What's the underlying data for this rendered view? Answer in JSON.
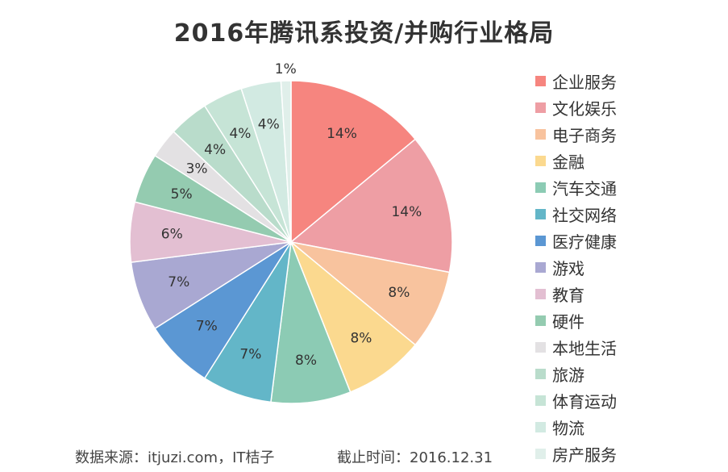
{
  "chart_data": {
    "type": "pie",
    "title": "2016年腾讯系投资/并购行业格局",
    "labels": [
      "企业服务",
      "文化娱乐",
      "电子商务",
      "金融",
      "汽车交通",
      "社交网络",
      "医疗健康",
      "游戏",
      "教育",
      "硬件",
      "本地生活",
      "旅游",
      "体育运动",
      "物流",
      "房产服务"
    ],
    "values": [
      14,
      14,
      8,
      8,
      8,
      7,
      7,
      7,
      6,
      5,
      3,
      4,
      4,
      4,
      1
    ],
    "data_labels": [
      "14%",
      "14%",
      "8%",
      "8%",
      "8%",
      "7%",
      "7%",
      "7%",
      "6%",
      "5%",
      "3%",
      "4%",
      "4%",
      "4%",
      "1%"
    ],
    "colors": [
      "#f6857f",
      "#ee9ea4",
      "#f8c39e",
      "#fbd98f",
      "#8ccbb4",
      "#63b6c8",
      "#5b97d3",
      "#a9a8d2",
      "#e3bfd2",
      "#94cbb0",
      "#e3e1e3",
      "#b9dccb",
      "#c6e4d6",
      "#d2eae2",
      "#e0efea"
    ],
    "legend_position": "right",
    "start": "top",
    "direction": "clockwise"
  },
  "footer": {
    "source": "数据来源：itjuzi.com，IT桔子",
    "date": "截止时间：2016.12.31"
  }
}
